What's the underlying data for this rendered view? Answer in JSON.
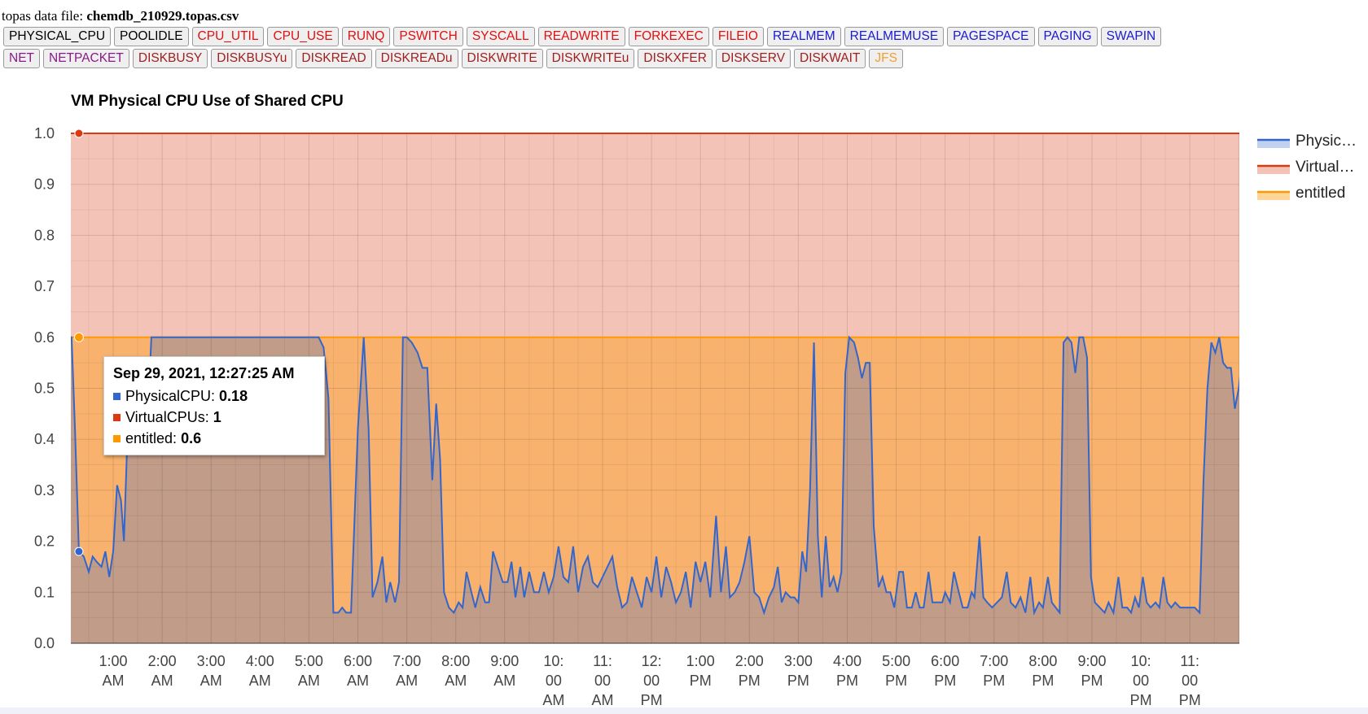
{
  "file": {
    "label": "topas data file:",
    "name": "chemdb_210929.topas.csv"
  },
  "buttons_row1": [
    {
      "label": "PHYSICAL_CPU",
      "color": "#000000"
    },
    {
      "label": "POOLIDLE",
      "color": "#000000"
    },
    {
      "label": "CPU_UTIL",
      "color": "#e01010"
    },
    {
      "label": "CPU_USE",
      "color": "#e01010"
    },
    {
      "label": "RUNQ",
      "color": "#e01010"
    },
    {
      "label": "PSWITCH",
      "color": "#e01010"
    },
    {
      "label": "SYSCALL",
      "color": "#e01010"
    },
    {
      "label": "READWRITE",
      "color": "#e01010"
    },
    {
      "label": "FORKEXEC",
      "color": "#e01010"
    },
    {
      "label": "FILEIO",
      "color": "#e01010"
    },
    {
      "label": "REALMEM",
      "color": "#1a1ad0"
    },
    {
      "label": "REALMEMUSE",
      "color": "#1a1ad0"
    },
    {
      "label": "PAGESPACE",
      "color": "#1a1ad0"
    },
    {
      "label": "PAGING",
      "color": "#1a1ad0"
    },
    {
      "label": "SWAPIN",
      "color": "#1a1ad0"
    }
  ],
  "buttons_row2": [
    {
      "label": "NET",
      "color": "#8a1a8a"
    },
    {
      "label": "NETPACKET",
      "color": "#8a1a8a"
    },
    {
      "label": "DISKBUSY",
      "color": "#a02020"
    },
    {
      "label": "DISKBUSYu",
      "color": "#a02020"
    },
    {
      "label": "DISKREAD",
      "color": "#a02020"
    },
    {
      "label": "DISKREADu",
      "color": "#a02020"
    },
    {
      "label": "DISKWRITE",
      "color": "#a02020"
    },
    {
      "label": "DISKWRITEu",
      "color": "#a02020"
    },
    {
      "label": "DISKXFER",
      "color": "#a02020"
    },
    {
      "label": "DISKSERV",
      "color": "#a02020"
    },
    {
      "label": "DISKWAIT",
      "color": "#a02020"
    },
    {
      "label": "JFS",
      "color": "#f0a030"
    }
  ],
  "tooltip": {
    "title": "Sep 29, 2021, 12:27:25 AM",
    "rows": [
      {
        "name": "PhysicalCPU",
        "value": "0.18",
        "color": "#3366cc"
      },
      {
        "name": "VirtualCPUs",
        "value": "1",
        "color": "#dc3912"
      },
      {
        "name": "entitled",
        "value": "0.6",
        "color": "#ff9900"
      }
    ]
  },
  "chart_data": {
    "type": "area",
    "title": "VM Physical CPU Use of Shared CPU",
    "ylim": [
      0,
      1.0
    ],
    "yticks": [
      "0.0",
      "0.1",
      "0.2",
      "0.3",
      "0.4",
      "0.5",
      "0.6",
      "0.7",
      "0.8",
      "0.9",
      "1.0"
    ],
    "xlim_hours": [
      0,
      24
    ],
    "xticks": [
      {
        "h": 1,
        "label": [
          "1:00",
          "AM"
        ]
      },
      {
        "h": 2,
        "label": [
          "2:00",
          "AM"
        ]
      },
      {
        "h": 3,
        "label": [
          "3:00",
          "AM"
        ]
      },
      {
        "h": 4,
        "label": [
          "4:00",
          "AM"
        ]
      },
      {
        "h": 5,
        "label": [
          "5:00",
          "AM"
        ]
      },
      {
        "h": 6,
        "label": [
          "6:00",
          "AM"
        ]
      },
      {
        "h": 7,
        "label": [
          "7:00",
          "AM"
        ]
      },
      {
        "h": 8,
        "label": [
          "8:00",
          "AM"
        ]
      },
      {
        "h": 9,
        "label": [
          "9:00",
          "AM"
        ]
      },
      {
        "h": 10,
        "label": [
          "10:",
          "00",
          "AM"
        ]
      },
      {
        "h": 11,
        "label": [
          "11:",
          "00",
          "AM"
        ]
      },
      {
        "h": 12,
        "label": [
          "12:",
          "00",
          "PM"
        ]
      },
      {
        "h": 13,
        "label": [
          "1:00",
          "PM"
        ]
      },
      {
        "h": 14,
        "label": [
          "2:00",
          "PM"
        ]
      },
      {
        "h": 15,
        "label": [
          "3:00",
          "PM"
        ]
      },
      {
        "h": 16,
        "label": [
          "4:00",
          "PM"
        ]
      },
      {
        "h": 17,
        "label": [
          "5:00",
          "PM"
        ]
      },
      {
        "h": 18,
        "label": [
          "6:00",
          "PM"
        ]
      },
      {
        "h": 19,
        "label": [
          "7:00",
          "PM"
        ]
      },
      {
        "h": 20,
        "label": [
          "8:00",
          "PM"
        ]
      },
      {
        "h": 21,
        "label": [
          "9:00",
          "PM"
        ]
      },
      {
        "h": 22,
        "label": [
          "10:",
          "00",
          "PM"
        ]
      },
      {
        "h": 23,
        "label": [
          "11:",
          "00",
          "PM"
        ]
      }
    ],
    "legend": {
      "position": "right",
      "entries": [
        "Physic…",
        "Virtual…",
        "entitled"
      ]
    },
    "series": [
      {
        "name": "PhysicalCPU",
        "color": "#3366cc",
        "points": [
          [
            0.0,
            0.54
          ],
          [
            0.06,
            0.6
          ],
          [
            0.15,
            0.6
          ],
          [
            0.22,
            0.42
          ],
          [
            0.3,
            0.18
          ],
          [
            0.4,
            0.17
          ],
          [
            0.5,
            0.14
          ],
          [
            0.58,
            0.17
          ],
          [
            0.66,
            0.16
          ],
          [
            0.76,
            0.15
          ],
          [
            0.84,
            0.18
          ],
          [
            0.92,
            0.13
          ],
          [
            1.0,
            0.18
          ],
          [
            1.08,
            0.31
          ],
          [
            1.16,
            0.28
          ],
          [
            1.22,
            0.2
          ],
          [
            1.3,
            0.43
          ],
          [
            1.38,
            0.49
          ],
          [
            1.46,
            0.49
          ],
          [
            1.52,
            0.51
          ],
          [
            1.62,
            0.46
          ],
          [
            1.7,
            0.43
          ],
          [
            1.78,
            0.6
          ],
          [
            1.9,
            0.6
          ],
          [
            5.2,
            0.6
          ],
          [
            5.3,
            0.58
          ],
          [
            5.4,
            0.48
          ],
          [
            5.5,
            0.06
          ],
          [
            5.6,
            0.06
          ],
          [
            5.68,
            0.07
          ],
          [
            5.76,
            0.06
          ],
          [
            5.86,
            0.06
          ],
          [
            6.0,
            0.42
          ],
          [
            6.12,
            0.6
          ],
          [
            6.22,
            0.42
          ],
          [
            6.3,
            0.09
          ],
          [
            6.4,
            0.12
          ],
          [
            6.5,
            0.17
          ],
          [
            6.58,
            0.08
          ],
          [
            6.66,
            0.12
          ],
          [
            6.76,
            0.08
          ],
          [
            6.84,
            0.12
          ],
          [
            6.92,
            0.6
          ],
          [
            7.0,
            0.6
          ],
          [
            7.1,
            0.59
          ],
          [
            7.22,
            0.57
          ],
          [
            7.32,
            0.54
          ],
          [
            7.42,
            0.54
          ],
          [
            7.52,
            0.32
          ],
          [
            7.6,
            0.47
          ],
          [
            7.68,
            0.36
          ],
          [
            7.76,
            0.1
          ],
          [
            7.86,
            0.07
          ],
          [
            7.96,
            0.06
          ],
          [
            8.06,
            0.08
          ],
          [
            8.14,
            0.07
          ],
          [
            8.22,
            0.14
          ],
          [
            8.32,
            0.1
          ],
          [
            8.4,
            0.07
          ],
          [
            8.5,
            0.11
          ],
          [
            8.6,
            0.08
          ],
          [
            8.68,
            0.08
          ],
          [
            8.76,
            0.18
          ],
          [
            8.86,
            0.15
          ],
          [
            8.96,
            0.12
          ],
          [
            9.06,
            0.12
          ],
          [
            9.14,
            0.16
          ],
          [
            9.22,
            0.09
          ],
          [
            9.32,
            0.15
          ],
          [
            9.4,
            0.09
          ],
          [
            9.5,
            0.14
          ],
          [
            9.6,
            0.1
          ],
          [
            9.7,
            0.1
          ],
          [
            9.8,
            0.14
          ],
          [
            9.9,
            0.1
          ],
          [
            10.0,
            0.13
          ],
          [
            10.1,
            0.19
          ],
          [
            10.2,
            0.13
          ],
          [
            10.3,
            0.12
          ],
          [
            10.4,
            0.19
          ],
          [
            10.5,
            0.1
          ],
          [
            10.6,
            0.15
          ],
          [
            10.7,
            0.17
          ],
          [
            10.8,
            0.12
          ],
          [
            10.9,
            0.11
          ],
          [
            11.0,
            0.13
          ],
          [
            11.1,
            0.15
          ],
          [
            11.2,
            0.17
          ],
          [
            11.3,
            0.11
          ],
          [
            11.4,
            0.07
          ],
          [
            11.5,
            0.08
          ],
          [
            11.6,
            0.13
          ],
          [
            11.7,
            0.1
          ],
          [
            11.8,
            0.07
          ],
          [
            11.9,
            0.13
          ],
          [
            12.0,
            0.1
          ],
          [
            12.1,
            0.17
          ],
          [
            12.2,
            0.09
          ],
          [
            12.3,
            0.15
          ],
          [
            12.4,
            0.12
          ],
          [
            12.5,
            0.08
          ],
          [
            12.6,
            0.1
          ],
          [
            12.7,
            0.14
          ],
          [
            12.8,
            0.07
          ],
          [
            12.9,
            0.16
          ],
          [
            13.0,
            0.12
          ],
          [
            13.1,
            0.16
          ],
          [
            13.2,
            0.09
          ],
          [
            13.32,
            0.25
          ],
          [
            13.42,
            0.1
          ],
          [
            13.52,
            0.19
          ],
          [
            13.6,
            0.09
          ],
          [
            13.7,
            0.1
          ],
          [
            13.8,
            0.12
          ],
          [
            13.9,
            0.16
          ],
          [
            14.0,
            0.21
          ],
          [
            14.1,
            0.1
          ],
          [
            14.2,
            0.09
          ],
          [
            14.3,
            0.06
          ],
          [
            14.4,
            0.09
          ],
          [
            14.5,
            0.11
          ],
          [
            14.58,
            0.15
          ],
          [
            14.66,
            0.08
          ],
          [
            14.74,
            0.1
          ],
          [
            14.84,
            0.09
          ],
          [
            14.92,
            0.09
          ],
          [
            15.0,
            0.08
          ],
          [
            15.08,
            0.18
          ],
          [
            15.16,
            0.14
          ],
          [
            15.24,
            0.3
          ],
          [
            15.32,
            0.59
          ],
          [
            15.4,
            0.21
          ],
          [
            15.48,
            0.09
          ],
          [
            15.56,
            0.21
          ],
          [
            15.64,
            0.11
          ],
          [
            15.72,
            0.13
          ],
          [
            15.8,
            0.1
          ],
          [
            15.88,
            0.14
          ],
          [
            15.96,
            0.53
          ],
          [
            16.04,
            0.6
          ],
          [
            16.14,
            0.59
          ],
          [
            16.22,
            0.56
          ],
          [
            16.3,
            0.52
          ],
          [
            16.38,
            0.55
          ],
          [
            16.46,
            0.55
          ],
          [
            16.54,
            0.23
          ],
          [
            16.64,
            0.11
          ],
          [
            16.72,
            0.13
          ],
          [
            16.8,
            0.1
          ],
          [
            16.88,
            0.1
          ],
          [
            16.96,
            0.07
          ],
          [
            17.06,
            0.14
          ],
          [
            17.14,
            0.14
          ],
          [
            17.22,
            0.07
          ],
          [
            17.32,
            0.07
          ],
          [
            17.4,
            0.1
          ],
          [
            17.48,
            0.07
          ],
          [
            17.56,
            0.07
          ],
          [
            17.66,
            0.14
          ],
          [
            17.74,
            0.08
          ],
          [
            17.84,
            0.08
          ],
          [
            17.94,
            0.08
          ],
          [
            18.0,
            0.1
          ],
          [
            18.1,
            0.08
          ],
          [
            18.18,
            0.14
          ],
          [
            18.28,
            0.1
          ],
          [
            18.36,
            0.07
          ],
          [
            18.46,
            0.07
          ],
          [
            18.54,
            0.1
          ],
          [
            18.6,
            0.09
          ],
          [
            18.7,
            0.21
          ],
          [
            18.78,
            0.09
          ],
          [
            18.86,
            0.08
          ],
          [
            18.96,
            0.07
          ],
          [
            19.06,
            0.08
          ],
          [
            19.16,
            0.09
          ],
          [
            19.26,
            0.14
          ],
          [
            19.34,
            0.08
          ],
          [
            19.44,
            0.07
          ],
          [
            19.54,
            0.09
          ],
          [
            19.64,
            0.06
          ],
          [
            19.74,
            0.13
          ],
          [
            19.82,
            0.06
          ],
          [
            19.92,
            0.08
          ],
          [
            20.0,
            0.07
          ],
          [
            20.1,
            0.13
          ],
          [
            20.18,
            0.08
          ],
          [
            20.26,
            0.07
          ],
          [
            20.34,
            0.06
          ],
          [
            20.42,
            0.59
          ],
          [
            20.5,
            0.6
          ],
          [
            20.58,
            0.59
          ],
          [
            20.66,
            0.53
          ],
          [
            20.74,
            0.6
          ],
          [
            20.82,
            0.6
          ],
          [
            20.9,
            0.56
          ],
          [
            20.98,
            0.13
          ],
          [
            21.06,
            0.08
          ],
          [
            21.16,
            0.07
          ],
          [
            21.26,
            0.06
          ],
          [
            21.34,
            0.08
          ],
          [
            21.44,
            0.06
          ],
          [
            21.54,
            0.13
          ],
          [
            21.62,
            0.07
          ],
          [
            21.72,
            0.07
          ],
          [
            21.8,
            0.06
          ],
          [
            21.88,
            0.09
          ],
          [
            21.96,
            0.07
          ],
          [
            22.04,
            0.13
          ],
          [
            22.12,
            0.08
          ],
          [
            22.2,
            0.07
          ],
          [
            22.3,
            0.08
          ],
          [
            22.38,
            0.07
          ],
          [
            22.46,
            0.13
          ],
          [
            22.54,
            0.08
          ],
          [
            22.62,
            0.07
          ],
          [
            22.7,
            0.08
          ],
          [
            22.8,
            0.07
          ],
          [
            22.9,
            0.07
          ],
          [
            23.0,
            0.07
          ],
          [
            23.1,
            0.07
          ],
          [
            23.2,
            0.06
          ],
          [
            23.28,
            0.32
          ],
          [
            23.36,
            0.5
          ],
          [
            23.44,
            0.59
          ],
          [
            23.52,
            0.57
          ],
          [
            23.6,
            0.6
          ],
          [
            23.68,
            0.55
          ],
          [
            23.76,
            0.54
          ],
          [
            23.84,
            0.54
          ],
          [
            23.92,
            0.46
          ],
          [
            24.0,
            0.5
          ],
          [
            24.08,
            0.57
          ],
          [
            24.16,
            0.54
          ],
          [
            24.24,
            0.56
          ],
          [
            24.3,
            0.53
          ],
          [
            24.35,
            0.56
          ]
        ]
      },
      {
        "name": "VirtualCPUs",
        "color": "#dc3912",
        "value": 1.0
      },
      {
        "name": "entitled",
        "color": "#ff9900",
        "value": 0.6
      }
    ],
    "hover_x": 0.3
  }
}
